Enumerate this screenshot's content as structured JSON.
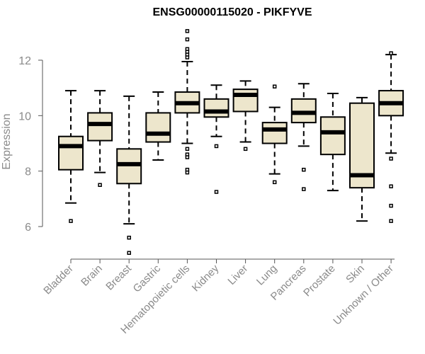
{
  "chart_data": {
    "type": "boxplot",
    "title": "ENSG00000115020 - PIKFYVE",
    "xlabel": "",
    "ylabel": "Expression",
    "ylim": [
      4.8,
      13.2
    ],
    "yticks": [
      6,
      8,
      10,
      12
    ],
    "grid": false,
    "colors": {
      "box_fill": "#ede6cc",
      "box_stroke": "#000000",
      "median": "#000000",
      "axis": "#555555",
      "tick_label": "#8a8a8a"
    },
    "categories": [
      "Bladder",
      "Brain",
      "Breast",
      "Gastric",
      "Hematopoietic cells",
      "Kidney",
      "Liver",
      "Lung",
      "Pancreas",
      "Prostate",
      "Skin",
      "Unknown / Other"
    ],
    "boxes": [
      {
        "name": "Bladder",
        "whisker_low": 6.85,
        "q1": 8.05,
        "median": 8.9,
        "q3": 9.25,
        "whisker_high": 10.9,
        "outliers": [
          6.2
        ]
      },
      {
        "name": "Brain",
        "whisker_low": 7.95,
        "q1": 9.1,
        "median": 9.7,
        "q3": 10.1,
        "whisker_high": 10.9,
        "outliers": [
          7.5
        ]
      },
      {
        "name": "Breast",
        "whisker_low": 6.1,
        "q1": 7.55,
        "median": 8.25,
        "q3": 8.8,
        "whisker_high": 10.7,
        "outliers": [
          5.6,
          5.05
        ]
      },
      {
        "name": "Gastric",
        "whisker_low": 8.4,
        "q1": 9.05,
        "median": 9.35,
        "q3": 10.1,
        "whisker_high": 10.85,
        "outliers": []
      },
      {
        "name": "Hematopoietic cells",
        "whisker_low": 9.0,
        "q1": 10.1,
        "median": 10.45,
        "q3": 10.85,
        "whisker_high": 11.95,
        "outliers": [
          13.05,
          12.75,
          12.4,
          12.3,
          12.2,
          12.1,
          8.8,
          8.6,
          8.5,
          8.05,
          7.95
        ]
      },
      {
        "name": "Kidney",
        "whisker_low": 9.25,
        "q1": 9.95,
        "median": 10.15,
        "q3": 10.6,
        "whisker_high": 11.1,
        "outliers": [
          8.9,
          7.25
        ]
      },
      {
        "name": "Liver",
        "whisker_low": 9.05,
        "q1": 10.15,
        "median": 10.75,
        "q3": 10.95,
        "whisker_high": 11.25,
        "outliers": [
          8.8
        ]
      },
      {
        "name": "Lung",
        "whisker_low": 7.9,
        "q1": 9.0,
        "median": 9.5,
        "q3": 9.75,
        "whisker_high": 10.3,
        "outliers": [
          11.05,
          7.6
        ]
      },
      {
        "name": "Pancreas",
        "whisker_low": 8.9,
        "q1": 9.75,
        "median": 10.1,
        "q3": 10.6,
        "whisker_high": 11.15,
        "outliers": [
          8.05,
          7.35
        ]
      },
      {
        "name": "Prostate",
        "whisker_low": 7.3,
        "q1": 8.6,
        "median": 9.4,
        "q3": 9.95,
        "whisker_high": 10.8,
        "outliers": []
      },
      {
        "name": "Skin",
        "whisker_low": 6.2,
        "q1": 7.4,
        "median": 7.85,
        "q3": 10.45,
        "whisker_high": 10.65,
        "outliers": []
      },
      {
        "name": "Unknown / Other",
        "whisker_low": 8.65,
        "q1": 10.0,
        "median": 10.45,
        "q3": 10.9,
        "whisker_high": 12.2,
        "outliers": [
          12.25,
          8.45,
          7.45,
          6.75,
          6.2
        ]
      }
    ]
  }
}
